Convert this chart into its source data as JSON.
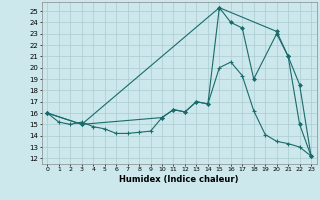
{
  "xlabel": "Humidex (Indice chaleur)",
  "background_color": "#cce8ec",
  "grid_color": "#aaccd0",
  "line_color": "#1a6b6b",
  "xlim": [
    -0.5,
    23.5
  ],
  "ylim": [
    11.5,
    25.8
  ],
  "yticks": [
    12,
    13,
    14,
    15,
    16,
    17,
    18,
    19,
    20,
    21,
    22,
    23,
    24,
    25
  ],
  "xticks": [
    0,
    1,
    2,
    3,
    4,
    5,
    6,
    7,
    8,
    9,
    10,
    11,
    12,
    13,
    14,
    15,
    16,
    17,
    18,
    19,
    20,
    21,
    22,
    23
  ],
  "line1_x": [
    0,
    1,
    2,
    3,
    4,
    5,
    6,
    7,
    8,
    9,
    10,
    11,
    12,
    13,
    14,
    15,
    16,
    17,
    18,
    19,
    20,
    21,
    22,
    23
  ],
  "line1_y": [
    16.0,
    15.2,
    15.0,
    15.2,
    14.8,
    14.6,
    14.2,
    14.2,
    14.3,
    14.4,
    15.6,
    16.3,
    16.1,
    17.0,
    16.8,
    20.0,
    20.5,
    19.3,
    16.2,
    14.1,
    13.5,
    13.3,
    13.0,
    12.2
  ],
  "line2_x": [
    0,
    3,
    10,
    11,
    12,
    13,
    14,
    15,
    16,
    17,
    18,
    20,
    21,
    22,
    23
  ],
  "line2_y": [
    16.0,
    15.0,
    15.6,
    16.3,
    16.1,
    17.0,
    16.8,
    25.3,
    24.0,
    23.5,
    19.0,
    23.0,
    21.0,
    15.0,
    12.2
  ],
  "line3_x": [
    0,
    3,
    15,
    20,
    21,
    22,
    23
  ],
  "line3_y": [
    16.0,
    15.0,
    25.3,
    23.2,
    21.0,
    18.5,
    12.2
  ]
}
